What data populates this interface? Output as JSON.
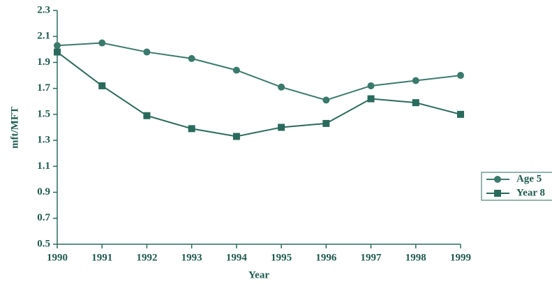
{
  "chart_data": {
    "type": "line",
    "x": [
      1990,
      1991,
      1992,
      1993,
      1994,
      1995,
      1996,
      1997,
      1998,
      1999
    ],
    "series": [
      {
        "name": "Age 5",
        "color": "#3a7a6c",
        "marker": "circle",
        "values": [
          2.03,
          2.05,
          1.98,
          1.93,
          1.84,
          1.71,
          1.61,
          1.72,
          1.76,
          1.8
        ]
      },
      {
        "name": "Year 8",
        "color": "#2a6a5c",
        "marker": "square",
        "values": [
          1.98,
          1.72,
          1.49,
          1.39,
          1.33,
          1.4,
          1.43,
          1.62,
          1.59,
          1.5
        ]
      }
    ],
    "xlabel": "Year",
    "ylabel": "mft/MFT",
    "xlim": [
      1990,
      1999
    ],
    "xticks": [
      1990,
      1991,
      1992,
      1993,
      1994,
      1995,
      1996,
      1997,
      1998,
      1999
    ],
    "ylim": [
      0.5,
      2.3
    ],
    "yticks": [
      0.5,
      0.7,
      0.9,
      1.1,
      1.3,
      1.5,
      1.7,
      1.9,
      2.1,
      2.3
    ],
    "legend": "right"
  }
}
